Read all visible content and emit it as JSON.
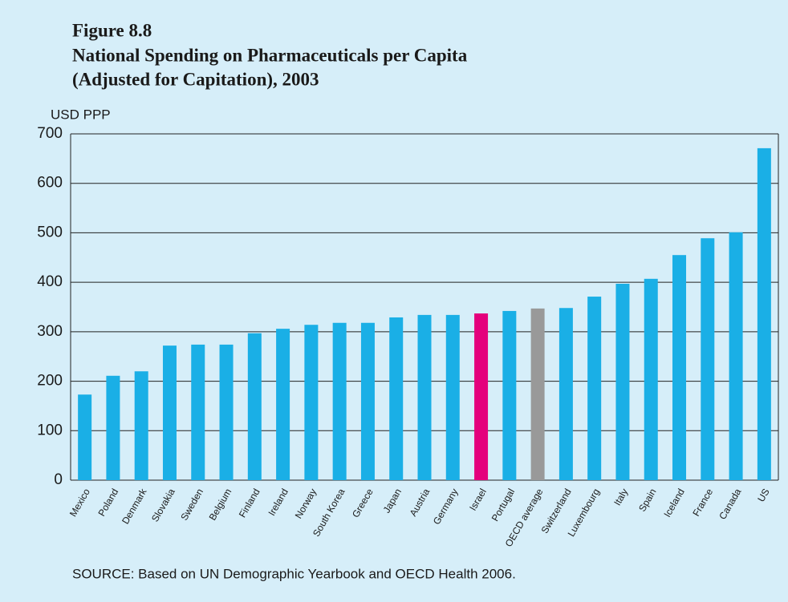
{
  "chart_data": {
    "type": "bar",
    "title_lines": [
      "Figure 8.8",
      "National Spending on Pharmaceuticals per Capita",
      "(Adjusted for Capitation), 2003"
    ],
    "y_axis_label": "USD PPP",
    "source": "SOURCE: Based on UN Demographic Yearbook and OECD Health 2006.",
    "categories": [
      "Mexico",
      "Poland",
      "Denmark",
      "Slovakia",
      "Sweden",
      "Belgium",
      "Finland",
      "Ireland",
      "Norway",
      "South Korea",
      "Greece",
      "Japan",
      "Austria",
      "Germany",
      "Israel",
      "Portugal",
      "OECD average",
      "Switzerland",
      "Luxembourg",
      "Italy",
      "Spain",
      "Iceland",
      "France",
      "Canada",
      "US"
    ],
    "values": [
      173,
      211,
      220,
      272,
      274,
      274,
      297,
      306,
      314,
      318,
      318,
      329,
      334,
      334,
      337,
      342,
      347,
      348,
      371,
      397,
      407,
      455,
      489,
      501,
      671
    ],
    "colors": [
      "#1aafe6",
      "#1aafe6",
      "#1aafe6",
      "#1aafe6",
      "#1aafe6",
      "#1aafe6",
      "#1aafe6",
      "#1aafe6",
      "#1aafe6",
      "#1aafe6",
      "#1aafe6",
      "#1aafe6",
      "#1aafe6",
      "#1aafe6",
      "#e4007c",
      "#1aafe6",
      "#999999",
      "#1aafe6",
      "#1aafe6",
      "#1aafe6",
      "#1aafe6",
      "#1aafe6",
      "#1aafe6",
      "#1aafe6",
      "#1aafe6"
    ],
    "ylim": [
      0,
      700
    ],
    "yticks": [
      0,
      100,
      200,
      300,
      400,
      500,
      600,
      700
    ],
    "grid": true
  }
}
